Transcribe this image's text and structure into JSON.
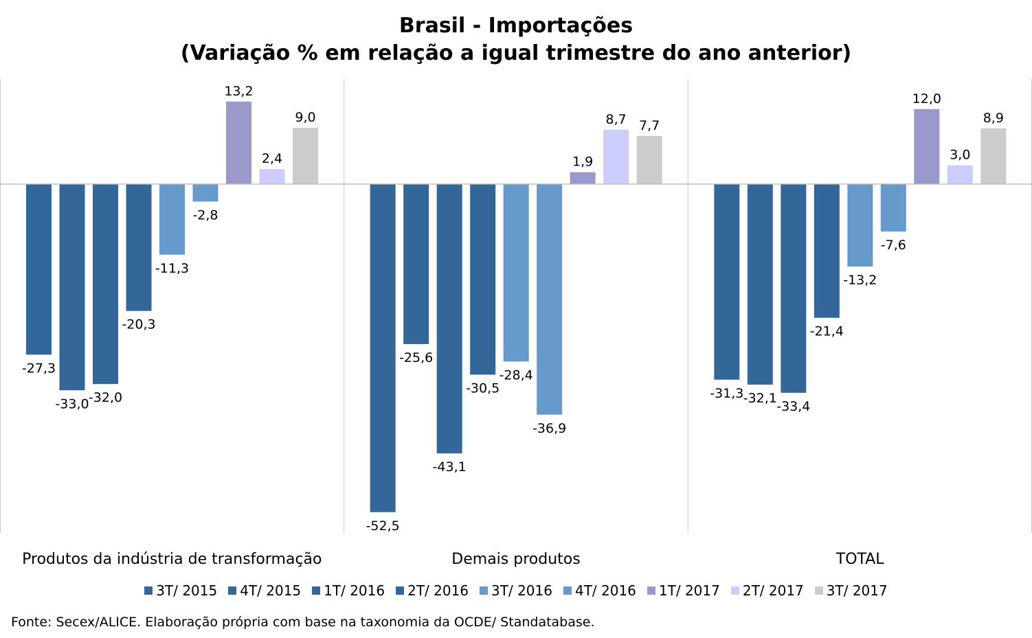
{
  "chart_data": {
    "type": "bar",
    "title": "Brasil - Importações",
    "subtitle": "(Variação % em relação a igual trimestre do ano anterior)",
    "categories": [
      "Produtos da indústria de transformação",
      "Demais produtos",
      "TOTAL"
    ],
    "series": [
      {
        "name": "3T/ 2015",
        "color": "#336699",
        "values": [
          -27.3,
          -52.5,
          -31.3
        ],
        "labels": [
          "-27,3",
          "-52,5",
          "-31,3"
        ]
      },
      {
        "name": "4T/ 2015",
        "color": "#336699",
        "values": [
          -33.0,
          -25.6,
          -32.1
        ],
        "labels": [
          "-33,0",
          "-25,6",
          "-32,1"
        ]
      },
      {
        "name": "1T/ 2016",
        "color": "#336699",
        "values": [
          -32.0,
          -43.1,
          -33.4
        ],
        "labels": [
          "-32,0",
          "-43,1",
          "-33,4"
        ]
      },
      {
        "name": "2T/ 2016",
        "color": "#336699",
        "values": [
          -20.3,
          -30.5,
          -21.4
        ],
        "labels": [
          "-20,3",
          "-30,5",
          "-21,4"
        ]
      },
      {
        "name": "3T/ 2016",
        "color": "#6699CC",
        "values": [
          -11.3,
          -28.4,
          -13.2
        ],
        "labels": [
          "-11,3",
          "-28,4",
          "-13,2"
        ]
      },
      {
        "name": "4T/ 2016",
        "color": "#6699CC",
        "values": [
          -2.8,
          -36.9,
          -7.6
        ],
        "labels": [
          "-2,8",
          "-36,9",
          "-7,6"
        ]
      },
      {
        "name": "1T/ 2017",
        "color": "#9999CC",
        "values": [
          13.2,
          1.9,
          12.0
        ],
        "labels": [
          "13,2",
          "1,9",
          "12,0"
        ]
      },
      {
        "name": "2T/ 2017",
        "color": "#CCCCFF",
        "values": [
          2.4,
          8.7,
          3.0
        ],
        "labels": [
          "2,4",
          "8,7",
          "3,0"
        ]
      },
      {
        "name": "3T/ 2017",
        "color": "#CCCCCC",
        "values": [
          9.0,
          7.7,
          8.9
        ],
        "labels": [
          "9,0",
          "7,7",
          "8,9"
        ]
      }
    ],
    "ylim": [
      -56,
      17
    ],
    "grid": false,
    "legend_position": "bottom"
  },
  "source": "Fonte: Secex/ALICE. Elaboração própria com base na taxonomia da OCDE/ Standatabase."
}
